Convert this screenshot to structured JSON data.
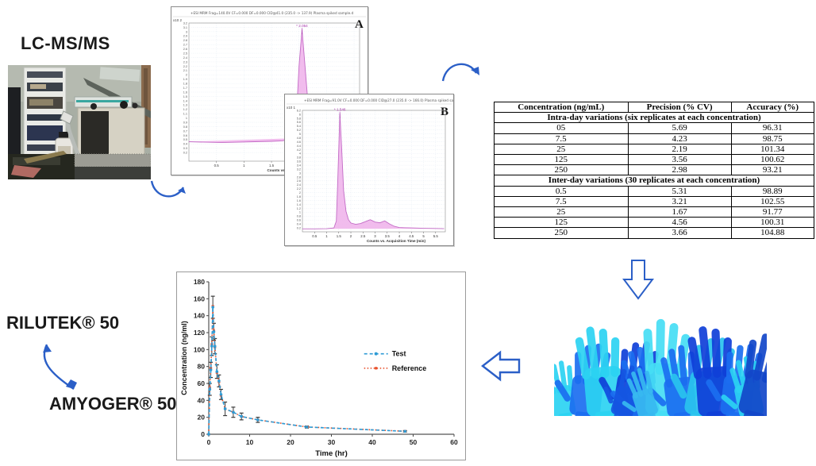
{
  "header": {
    "instrument_label": "LC-MS/MS"
  },
  "drugs": {
    "reference_product": "RILUTEK® 50",
    "test_product": "AMYOGER® 50"
  },
  "icons": {
    "curve_arrow_photo_to_chrom": "curved-right-arrow",
    "curve_arrow_chrom_to_table": "arc-right-arrow",
    "block_arrow_table_to_hands": "down-block-arrow",
    "block_arrow_hands_to_chart": "left-block-arrow",
    "double_curve_arrow_drugs": "two-way-curved-arrow"
  },
  "colors": {
    "arrow_blue": "#2b5fc7",
    "peak_fill": "#eeb0ea",
    "peak_stroke": "#c36cc6",
    "peak_label": "#a431a8",
    "chrom_grid": "#d4e0ec",
    "test_series": "#2e9bd5",
    "reference_series": "#e8512c",
    "error_bar": "#3a3a3a"
  },
  "hands_palette": [
    "#2bd2f2",
    "#1b6ef0",
    "#0f3fd8",
    "#37b9f0",
    "#1247c9",
    "#29c3ee",
    "#1a5ce8",
    "#0e35c0",
    "#45ddf4",
    "#1556e2"
  ],
  "table": {
    "headers": [
      "Concentration (ng/mL)",
      "Precision (% CV)",
      "Accuracy (%)"
    ],
    "sections": [
      {
        "label": "Intra-day variations (six replicates at each concentration)",
        "rows": [
          [
            "05",
            "5.69",
            "96.31"
          ],
          [
            "7.5",
            "4.23",
            "98.75"
          ],
          [
            "25",
            "2.19",
            "101.34"
          ],
          [
            "125",
            "3.56",
            "100.62"
          ],
          [
            "250",
            "2.98",
            "93.21"
          ]
        ]
      },
      {
        "label": "Inter-day variations (30 replicates at each concentration)",
        "rows": [
          [
            "0.5",
            "5.31",
            "98.89"
          ],
          [
            "7.5",
            "3.21",
            "102.55"
          ],
          [
            "25",
            "1.67",
            "91.77"
          ],
          [
            "125",
            "4.56",
            "100.31"
          ],
          [
            "250",
            "3.66",
            "104.88"
          ]
        ]
      }
    ]
  },
  "chart_data": [
    {
      "type": "line",
      "id": "chromatogram-a",
      "panel_label": "A",
      "header_text": "+ESI MRM Frag=140.0V CF=0.000 DF=0.000 CID@41.0 (235.0 -> 137.9) Plasma spiked sample.d",
      "exponent_label": "x10 2",
      "peak_label": "2.054",
      "xlabel": "Counts vs. Acquisition Time (min)",
      "xlim": [
        0,
        3.1
      ],
      "x_tick_start": 0.5,
      "x_tick_step": 0.5,
      "ylim": [
        0.2,
        3.2
      ],
      "y_tick_step": 0.1,
      "x": [
        0,
        0.3,
        0.6,
        0.9,
        1.2,
        1.5,
        1.7,
        1.85,
        1.95,
        2.0,
        2.054,
        2.1,
        2.15,
        2.2,
        2.3,
        2.4,
        2.5,
        2.6,
        2.7,
        2.8,
        2.9,
        3.0,
        3.08
      ],
      "intensity": [
        0.45,
        0.44,
        0.43,
        0.44,
        0.45,
        0.46,
        0.47,
        0.52,
        0.95,
        2.2,
        3.05,
        2.35,
        1.55,
        1.05,
        0.75,
        0.66,
        0.69,
        0.73,
        0.66,
        0.59,
        0.63,
        0.6,
        0.58
      ]
    },
    {
      "type": "line",
      "id": "chromatogram-b",
      "panel_label": "B",
      "header_text": "+ESI MRM Frag=91.0V CF=0.000 DF=0.000 CID@27.0 (235.0 -> 166.0) Plasma spiked sample.d",
      "exponent_label": "x10 1",
      "peak_label": "1.546",
      "xlabel": "Counts vs. Acquisition Time (min)",
      "xlim": [
        0,
        5.9
      ],
      "x_tick_start": 0.5,
      "x_tick_step": 0.5,
      "ylim": [
        0.2,
        6.2
      ],
      "y_tick_step": 0.2,
      "x": [
        0,
        0.5,
        1.0,
        1.3,
        1.4,
        1.46,
        1.546,
        1.62,
        1.7,
        1.8,
        1.9,
        2.0,
        2.2,
        2.4,
        2.6,
        2.8,
        3.0,
        3.2,
        3.4,
        3.6,
        3.8,
        4.0,
        4.5,
        5.0,
        5.5,
        5.85
      ],
      "intensity": [
        0.15,
        0.15,
        0.16,
        0.2,
        0.55,
        2.6,
        6.05,
        4.3,
        2.1,
        1.05,
        0.62,
        0.45,
        0.38,
        0.42,
        0.52,
        0.62,
        0.5,
        0.46,
        0.56,
        0.4,
        0.28,
        0.22,
        0.2,
        0.18,
        0.17,
        0.16
      ]
    },
    {
      "type": "line",
      "id": "pk-profile",
      "xlabel": "Time (hr)",
      "ylabel": "Concentration (ng/ml)",
      "xlim": [
        0,
        60
      ],
      "ylim": [
        0,
        180
      ],
      "x_ticks": [
        0,
        10,
        20,
        30,
        40,
        50,
        60
      ],
      "y_ticks": [
        0,
        20,
        40,
        60,
        80,
        100,
        120,
        140,
        160,
        180
      ],
      "legend_position": "right-middle",
      "grid": false,
      "x": [
        0,
        0.25,
        0.5,
        0.75,
        1,
        1.25,
        1.5,
        2,
        2.5,
        3,
        4,
        6,
        8,
        12,
        24,
        48
      ],
      "series": [
        {
          "name": "Test",
          "color": "#2e9bd5",
          "style": "dashed",
          "values": [
            0,
            53,
            76,
            104,
            150,
            121,
            104,
            74,
            63,
            47,
            30,
            26,
            21,
            17,
            8.5,
            3.5
          ]
        },
        {
          "name": "Reference",
          "color": "#e8512c",
          "style": "dotted",
          "values": [
            0,
            55,
            78,
            106,
            151,
            122,
            103,
            73,
            62,
            46,
            30,
            26,
            21,
            17,
            8.6,
            3.6
          ]
        }
      ],
      "error": [
        0,
        7,
        9,
        11,
        13,
        10,
        9,
        8,
        7,
        6,
        8,
        6,
        4,
        3,
        1.2,
        0.8
      ]
    }
  ]
}
